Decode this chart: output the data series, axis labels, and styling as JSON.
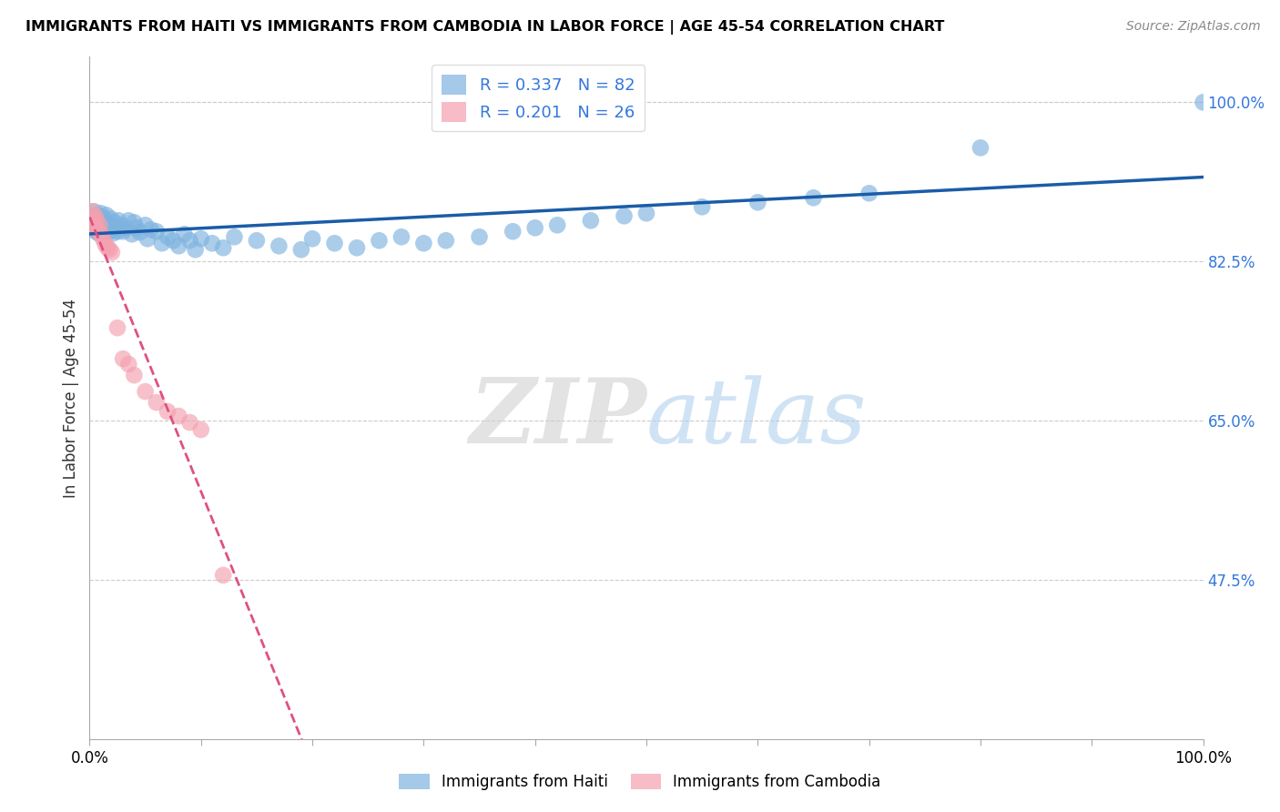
{
  "title": "IMMIGRANTS FROM HAITI VS IMMIGRANTS FROM CAMBODIA IN LABOR FORCE | AGE 45-54 CORRELATION CHART",
  "source": "Source: ZipAtlas.com",
  "ylabel": "In Labor Force | Age 45-54",
  "right_yticks": [
    1.0,
    0.825,
    0.65,
    0.475
  ],
  "right_ytick_labels": [
    "100.0%",
    "82.5%",
    "65.0%",
    "47.5%"
  ],
  "haiti_R": 0.337,
  "haiti_N": 82,
  "cambodia_R": 0.201,
  "cambodia_N": 26,
  "haiti_color": "#7EB3E0",
  "cambodia_color": "#F4A0B0",
  "haiti_line_color": "#1A5CA8",
  "cambodia_line_color": "#E05080",
  "background_color": "#FFFFFF",
  "watermark_zip": "ZIP",
  "watermark_atlas": "atlas",
  "xmin": 0.0,
  "xmax": 1.0,
  "ymin": 0.3,
  "ymax": 1.05,
  "haiti_x": [
    0.002,
    0.003,
    0.004,
    0.004,
    0.005,
    0.005,
    0.006,
    0.006,
    0.007,
    0.007,
    0.008,
    0.008,
    0.009,
    0.009,
    0.01,
    0.01,
    0.01,
    0.011,
    0.011,
    0.012,
    0.012,
    0.013,
    0.014,
    0.014,
    0.015,
    0.015,
    0.016,
    0.017,
    0.018,
    0.019,
    0.02,
    0.021,
    0.022,
    0.023,
    0.025,
    0.026,
    0.028,
    0.03,
    0.032,
    0.035,
    0.038,
    0.04,
    0.042,
    0.045,
    0.05,
    0.052,
    0.055,
    0.06,
    0.065,
    0.07,
    0.075,
    0.08,
    0.085,
    0.09,
    0.095,
    0.1,
    0.11,
    0.12,
    0.13,
    0.15,
    0.17,
    0.19,
    0.2,
    0.22,
    0.24,
    0.26,
    0.28,
    0.3,
    0.32,
    0.35,
    0.38,
    0.4,
    0.42,
    0.45,
    0.48,
    0.5,
    0.55,
    0.6,
    0.65,
    0.7,
    0.8,
    1.0
  ],
  "haiti_y": [
    0.87,
    0.875,
    0.86,
    0.88,
    0.865,
    0.872,
    0.858,
    0.87,
    0.862,
    0.874,
    0.856,
    0.869,
    0.86,
    0.875,
    0.862,
    0.868,
    0.878,
    0.863,
    0.87,
    0.858,
    0.873,
    0.862,
    0.857,
    0.87,
    0.863,
    0.876,
    0.861,
    0.865,
    0.858,
    0.872,
    0.86,
    0.856,
    0.868,
    0.862,
    0.858,
    0.87,
    0.865,
    0.858,
    0.862,
    0.87,
    0.855,
    0.868,
    0.862,
    0.857,
    0.865,
    0.85,
    0.86,
    0.858,
    0.845,
    0.852,
    0.848,
    0.842,
    0.855,
    0.848,
    0.838,
    0.85,
    0.845,
    0.84,
    0.852,
    0.848,
    0.842,
    0.838,
    0.85,
    0.845,
    0.84,
    0.848,
    0.852,
    0.845,
    0.848,
    0.852,
    0.858,
    0.862,
    0.865,
    0.87,
    0.875,
    0.878,
    0.885,
    0.89,
    0.895,
    0.9,
    0.95,
    1.0
  ],
  "cambodia_x": [
    0.002,
    0.003,
    0.004,
    0.005,
    0.005,
    0.006,
    0.007,
    0.008,
    0.009,
    0.01,
    0.012,
    0.014,
    0.016,
    0.018,
    0.02,
    0.025,
    0.03,
    0.035,
    0.04,
    0.05,
    0.06,
    0.07,
    0.08,
    0.09,
    0.1,
    0.12
  ],
  "cambodia_y": [
    0.88,
    0.872,
    0.868,
    0.875,
    0.862,
    0.87,
    0.86,
    0.858,
    0.865,
    0.856,
    0.85,
    0.844,
    0.84,
    0.838,
    0.835,
    0.752,
    0.718,
    0.712,
    0.7,
    0.682,
    0.67,
    0.66,
    0.655,
    0.648,
    0.64,
    0.48
  ]
}
